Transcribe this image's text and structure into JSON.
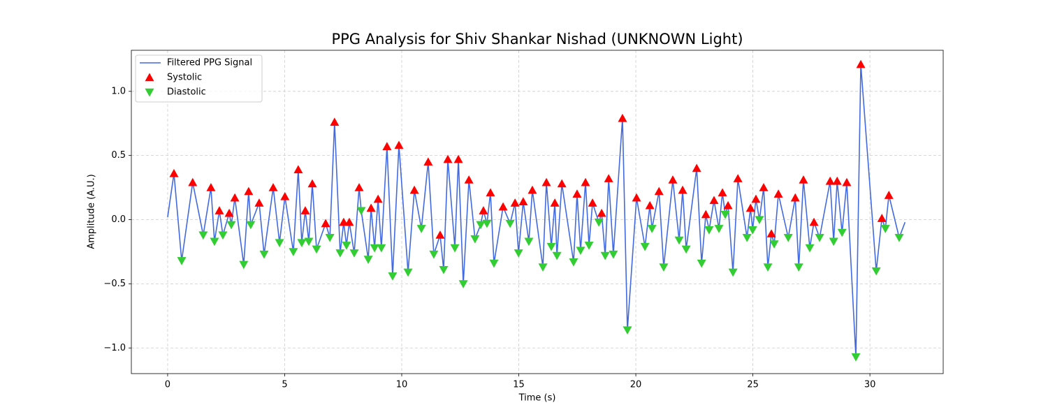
{
  "chart_data": {
    "type": "line",
    "title": "PPG Analysis for Shiv Shankar Nishad (UNKNOWN Light)",
    "x_label": "Time (s)",
    "y_label": "Amplitude (A.U.)",
    "xlim": [
      -1.55,
      33.13
    ],
    "ylim": [
      -1.2,
      1.32
    ],
    "xticks": [
      0,
      5,
      10,
      15,
      20,
      25,
      30
    ],
    "yticks": [
      {
        "value": -1.0,
        "label": "−1.0"
      },
      {
        "value": -0.5,
        "label": "−0.5"
      },
      {
        "value": 0.0,
        "label": "0.0"
      },
      {
        "value": 0.5,
        "label": "0.5"
      },
      {
        "value": 1.0,
        "label": "1.0"
      }
    ],
    "grid": true,
    "legend": "upper left",
    "series": [
      {
        "name": "Filtered PPG Signal",
        "type": "line",
        "color": "#4169e1",
        "x": [
          0,
          0.27,
          0.6,
          1.07,
          1.52,
          1.85,
          2.0,
          2.21,
          2.36,
          2.63,
          2.72,
          2.87,
          3.25,
          3.46,
          3.55,
          3.91,
          4.12,
          4.51,
          4.78,
          5.01,
          5.37,
          5.58,
          5.73,
          5.88,
          6.03,
          6.18,
          6.36,
          6.75,
          6.93,
          7.13,
          7.37,
          7.52,
          7.64,
          7.76,
          7.97,
          8.18,
          8.27,
          8.57,
          8.69,
          8.84,
          8.99,
          9.13,
          9.37,
          9.61,
          9.88,
          10.27,
          10.54,
          10.84,
          11.13,
          11.37,
          11.64,
          11.79,
          11.97,
          12.27,
          12.42,
          12.63,
          12.87,
          13.13,
          13.37,
          13.49,
          13.64,
          13.79,
          13.94,
          14.33,
          14.63,
          14.84,
          14.99,
          15.19,
          15.43,
          15.58,
          16.03,
          16.18,
          16.39,
          16.54,
          16.63,
          16.84,
          17.34,
          17.49,
          17.64,
          17.85,
          18.0,
          18.15,
          18.42,
          18.54,
          18.69,
          18.84,
          19.04,
          19.43,
          19.64,
          20.03,
          20.39,
          20.6,
          20.69,
          20.99,
          21.19,
          21.58,
          21.85,
          22.0,
          22.15,
          22.6,
          22.81,
          22.99,
          23.13,
          23.34,
          23.55,
          23.7,
          23.82,
          23.94,
          24.15,
          24.36,
          24.75,
          24.9,
          24.99,
          25.13,
          25.28,
          25.46,
          25.64,
          25.79,
          25.91,
          26.09,
          26.51,
          26.81,
          26.96,
          27.16,
          27.43,
          27.61,
          27.85,
          28.3,
          28.45,
          28.6,
          28.81,
          29.01,
          29.4,
          29.61,
          30.27,
          30.51,
          30.66,
          30.81,
          31.25,
          31.5
        ],
        "values": [
          0.02,
          0.36,
          -0.32,
          0.29,
          -0.12,
          0.25,
          -0.17,
          0.07,
          -0.12,
          0.05,
          -0.04,
          0.17,
          -0.35,
          0.22,
          -0.04,
          0.13,
          -0.27,
          0.25,
          -0.18,
          0.18,
          -0.25,
          0.39,
          -0.18,
          0.07,
          -0.17,
          0.28,
          -0.23,
          -0.03,
          -0.14,
          0.76,
          -0.26,
          -0.02,
          -0.2,
          -0.02,
          -0.26,
          0.25,
          0.07,
          -0.31,
          0.09,
          -0.22,
          0.16,
          -0.22,
          0.57,
          -0.44,
          0.58,
          -0.41,
          0.23,
          -0.07,
          0.45,
          -0.27,
          -0.12,
          -0.39,
          0.47,
          -0.22,
          0.47,
          -0.5,
          0.31,
          -0.15,
          -0.04,
          0.07,
          -0.03,
          0.21,
          -0.34,
          0.1,
          -0.03,
          0.13,
          -0.26,
          0.14,
          -0.17,
          0.23,
          -0.37,
          0.29,
          -0.21,
          0.13,
          -0.28,
          0.28,
          -0.33,
          0.2,
          -0.24,
          0.29,
          -0.2,
          0.13,
          -0.02,
          0.05,
          -0.28,
          0.32,
          -0.27,
          0.79,
          -0.86,
          0.17,
          -0.21,
          0.11,
          -0.07,
          0.22,
          -0.37,
          0.31,
          -0.16,
          0.23,
          -0.23,
          0.4,
          -0.34,
          0.04,
          -0.08,
          0.15,
          -0.07,
          0.21,
          0.04,
          0.11,
          -0.41,
          0.32,
          -0.14,
          0.09,
          -0.08,
          0.16,
          0.0,
          0.25,
          -0.37,
          -0.11,
          -0.19,
          0.2,
          -0.14,
          0.17,
          -0.37,
          0.31,
          -0.22,
          -0.02,
          -0.14,
          0.3,
          -0.17,
          0.3,
          -0.1,
          0.29,
          -1.07,
          1.21,
          -0.4,
          0.01,
          -0.07,
          0.19,
          -0.14,
          -0.02
        ]
      },
      {
        "name": "Systolic",
        "type": "scatter",
        "marker": "triangle-up",
        "color": "#ff0000",
        "x": [
          0.27,
          1.07,
          1.85,
          2.21,
          2.63,
          2.87,
          3.46,
          3.91,
          4.51,
          5.01,
          5.58,
          5.88,
          6.18,
          6.75,
          7.13,
          7.52,
          7.76,
          8.18,
          8.69,
          8.99,
          9.37,
          9.88,
          10.54,
          11.13,
          11.64,
          11.97,
          12.42,
          12.87,
          13.49,
          13.79,
          14.33,
          14.84,
          15.19,
          15.58,
          16.18,
          16.54,
          16.84,
          17.49,
          17.85,
          18.15,
          18.54,
          18.84,
          19.43,
          20.03,
          20.6,
          20.99,
          21.58,
          22.0,
          22.6,
          22.99,
          23.34,
          23.7,
          23.94,
          24.36,
          24.9,
          25.13,
          25.46,
          25.79,
          26.09,
          26.81,
          27.16,
          27.61,
          28.3,
          28.6,
          29.01,
          29.61,
          30.51,
          30.81
        ],
        "values": [
          0.36,
          0.29,
          0.25,
          0.07,
          0.05,
          0.17,
          0.22,
          0.13,
          0.25,
          0.18,
          0.39,
          0.07,
          0.28,
          -0.03,
          0.76,
          -0.02,
          -0.02,
          0.25,
          0.09,
          0.16,
          0.57,
          0.58,
          0.23,
          0.45,
          -0.12,
          0.47,
          0.47,
          0.31,
          0.07,
          0.21,
          0.1,
          0.13,
          0.14,
          0.23,
          0.29,
          0.13,
          0.28,
          0.2,
          0.29,
          0.13,
          0.05,
          0.32,
          0.79,
          0.17,
          0.11,
          0.22,
          0.31,
          0.23,
          0.4,
          0.04,
          0.15,
          0.21,
          0.11,
          0.32,
          0.09,
          0.16,
          0.25,
          -0.11,
          0.2,
          0.17,
          0.31,
          -0.02,
          0.3,
          0.3,
          0.29,
          1.21,
          0.01,
          0.19
        ]
      },
      {
        "name": "Diastolic",
        "type": "scatter",
        "marker": "triangle-down",
        "color": "#32cd32",
        "x": [
          0.6,
          1.52,
          2.0,
          2.36,
          2.72,
          3.25,
          3.55,
          4.12,
          4.78,
          5.37,
          5.73,
          6.03,
          6.36,
          6.93,
          7.37,
          7.64,
          7.97,
          8.27,
          8.57,
          8.84,
          9.13,
          9.61,
          10.27,
          10.84,
          11.37,
          11.79,
          12.27,
          12.63,
          13.13,
          13.37,
          13.64,
          13.94,
          14.63,
          14.99,
          15.43,
          16.03,
          16.39,
          16.63,
          17.34,
          17.64,
          18.0,
          18.42,
          18.69,
          19.04,
          19.64,
          20.39,
          20.69,
          21.19,
          21.85,
          22.15,
          22.81,
          23.13,
          23.55,
          23.82,
          24.15,
          24.75,
          24.99,
          25.28,
          25.64,
          25.91,
          26.51,
          26.96,
          27.43,
          27.85,
          28.45,
          28.81,
          29.4,
          30.27,
          30.66,
          31.25
        ],
        "values": [
          -0.32,
          -0.12,
          -0.17,
          -0.12,
          -0.04,
          -0.35,
          -0.04,
          -0.27,
          -0.18,
          -0.25,
          -0.18,
          -0.17,
          -0.23,
          -0.14,
          -0.26,
          -0.2,
          -0.26,
          0.07,
          -0.31,
          -0.22,
          -0.22,
          -0.44,
          -0.41,
          -0.07,
          -0.27,
          -0.39,
          -0.22,
          -0.5,
          -0.15,
          -0.04,
          -0.03,
          -0.34,
          -0.03,
          -0.26,
          -0.17,
          -0.37,
          -0.21,
          -0.28,
          -0.33,
          -0.24,
          -0.2,
          -0.02,
          -0.28,
          -0.27,
          -0.86,
          -0.21,
          -0.07,
          -0.37,
          -0.16,
          -0.23,
          -0.34,
          -0.08,
          -0.07,
          0.04,
          -0.41,
          -0.14,
          -0.08,
          0.0,
          -0.37,
          -0.19,
          -0.14,
          -0.37,
          -0.22,
          -0.14,
          -0.17,
          -0.1,
          -1.07,
          -0.4,
          -0.07,
          -0.14
        ]
      }
    ]
  }
}
